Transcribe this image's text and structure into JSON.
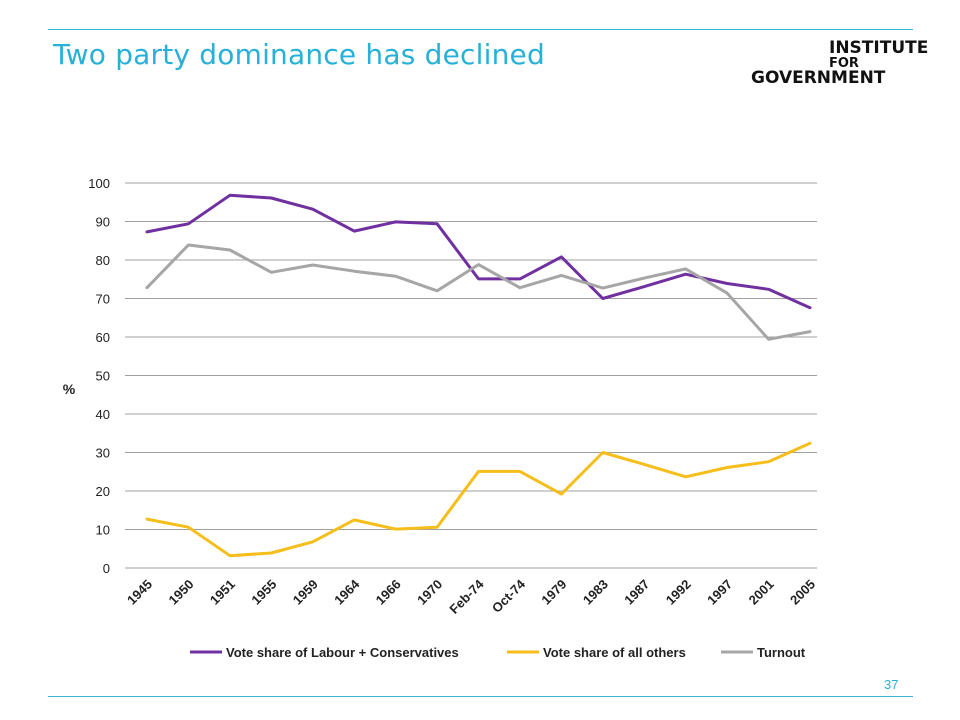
{
  "slide": {
    "title": "Two party dominance has declined",
    "page_number": "37",
    "accent_color": "#27b1d8"
  },
  "logo": {
    "line1": "INSTITUTE",
    "line2": "FOR",
    "line3": "GOVERNMENT"
  },
  "chart_data": {
    "type": "line",
    "categories": [
      "1945",
      "1950",
      "1951",
      "1955",
      "1959",
      "1964",
      "1966",
      "1970",
      "Feb-74",
      "Oct-74",
      "1979",
      "1983",
      "1987",
      "1992",
      "1997",
      "2001",
      "2005"
    ],
    "ylabel": "%",
    "xlabel": "",
    "ylim": [
      0,
      100
    ],
    "yticks": [
      0,
      10,
      20,
      30,
      40,
      50,
      60,
      70,
      80,
      90,
      100
    ],
    "grid": true,
    "legend_position": "bottom",
    "series": [
      {
        "name": "Vote share of Labour + Conservatives",
        "color": "#7030a0",
        "values": [
          87.3,
          89.4,
          96.8,
          96.1,
          93.2,
          87.5,
          89.9,
          89.4,
          75.1,
          75.1,
          80.8,
          70.0,
          73.1,
          76.3,
          73.9,
          72.4,
          67.6
        ]
      },
      {
        "name": "Vote share of all others",
        "color": "#f5be1a",
        "values": [
          12.7,
          10.6,
          3.2,
          3.9,
          6.8,
          12.5,
          10.1,
          10.6,
          25.1,
          25.1,
          19.2,
          30.0,
          26.9,
          23.7,
          26.1,
          27.6,
          32.4
        ]
      },
      {
        "name": "Turnout",
        "color": "#a6a6a6",
        "values": [
          72.8,
          83.9,
          82.6,
          76.8,
          78.7,
          77.1,
          75.8,
          72.0,
          78.8,
          72.8,
          76.0,
          72.7,
          75.3,
          77.7,
          71.4,
          59.4,
          61.4
        ]
      }
    ]
  }
}
